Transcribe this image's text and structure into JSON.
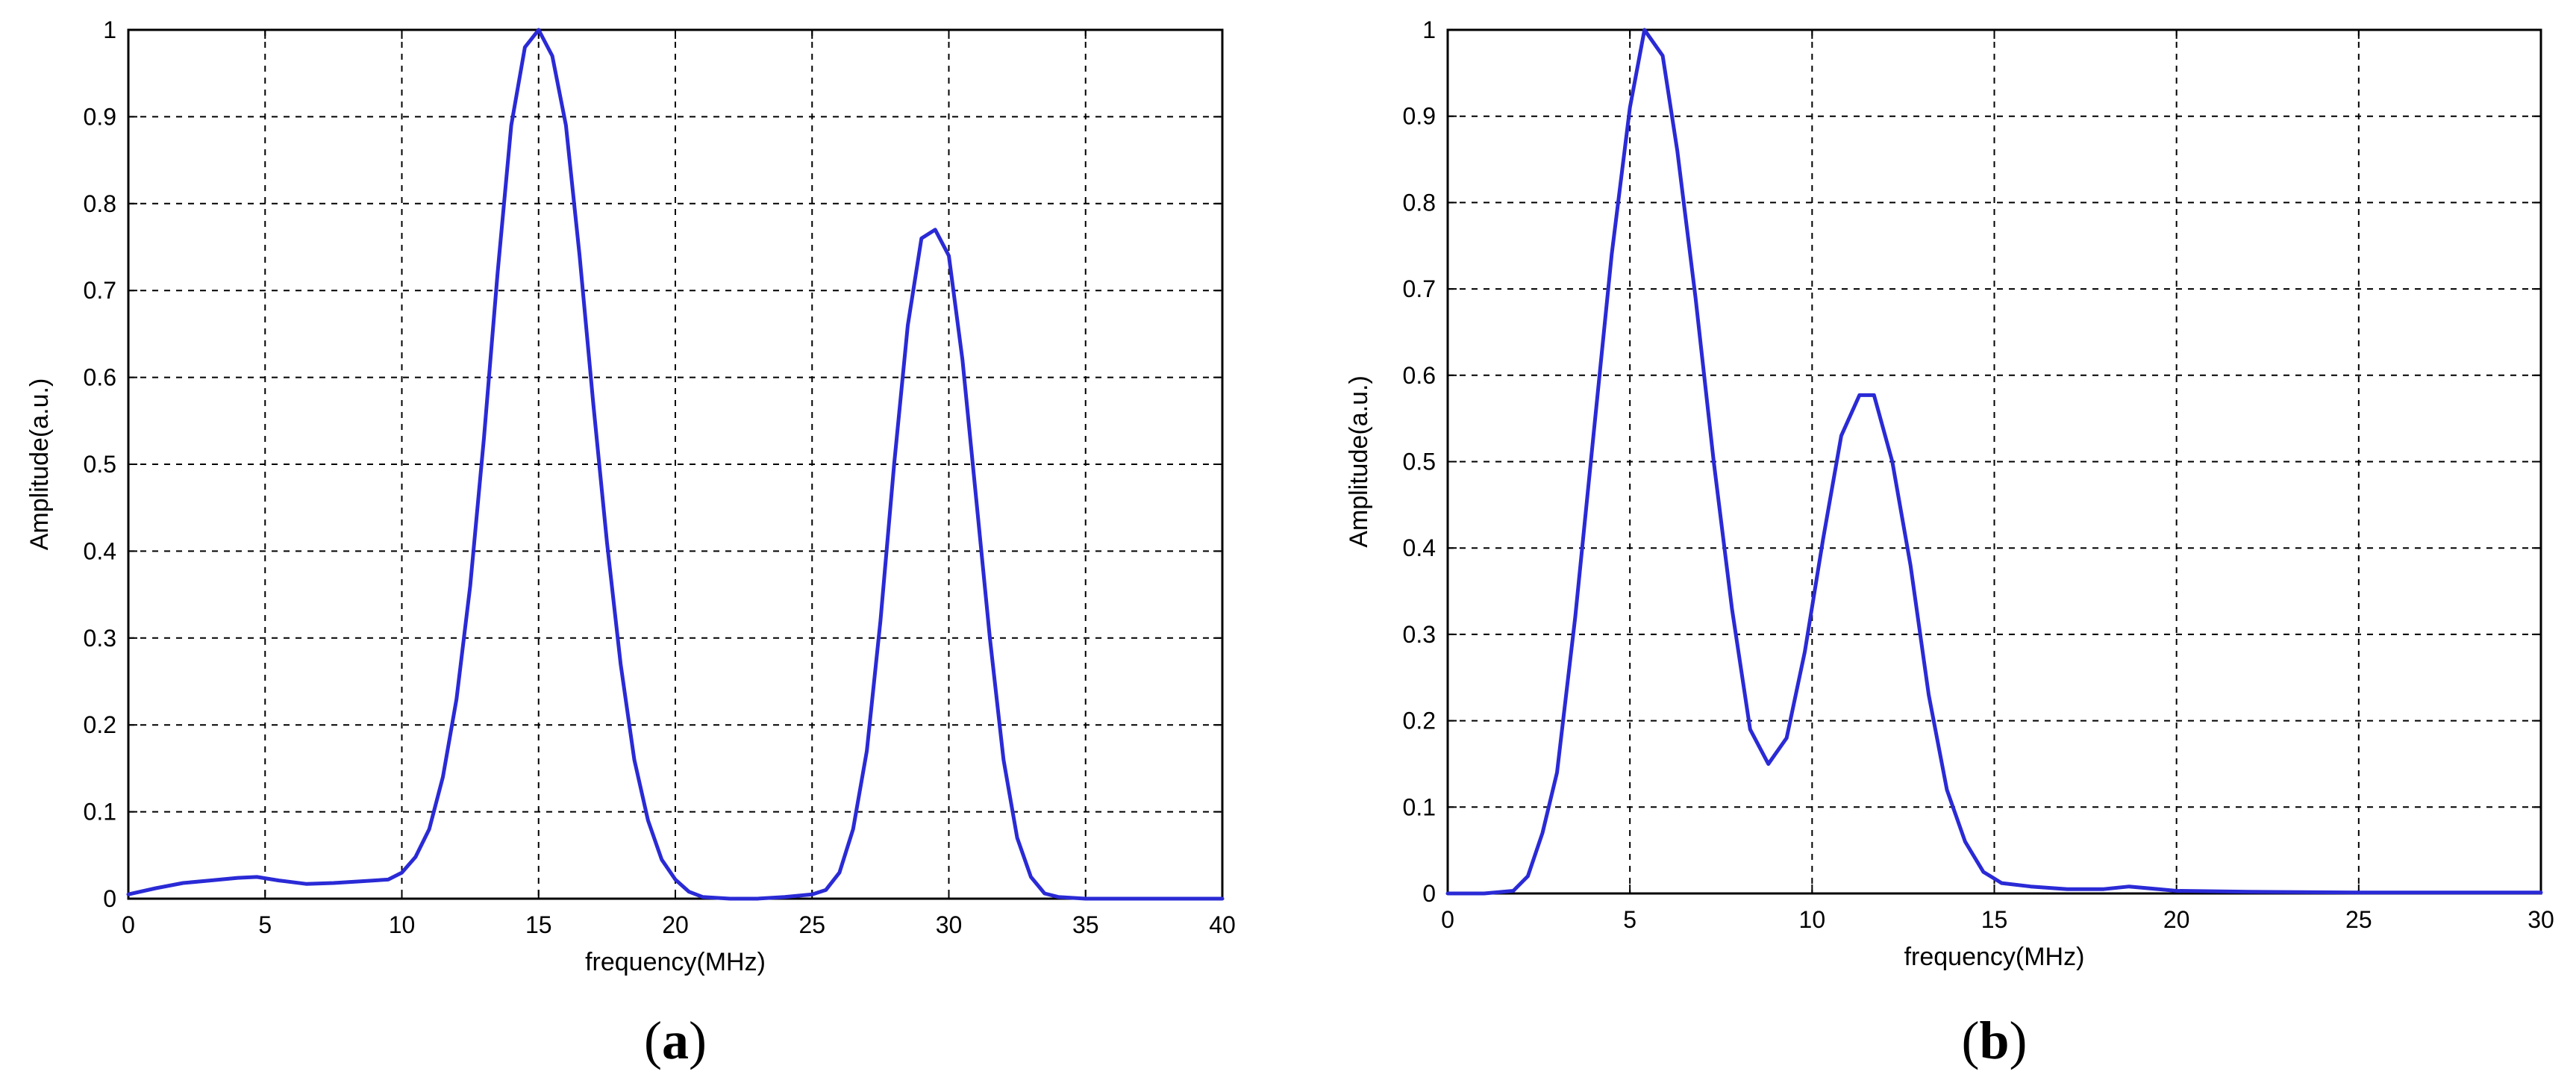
{
  "chart_data": [
    {
      "type": "line",
      "panel_label": "(a)",
      "xlabel": "frequency(MHz)",
      "ylabel": "Amplitude(a.u.)",
      "xlim": [
        0,
        40
      ],
      "ylim": [
        0,
        1
      ],
      "xticks": [
        "0",
        "5",
        "10",
        "15",
        "20",
        "25",
        "30",
        "35",
        "40"
      ],
      "yticks": [
        "0",
        "0.1",
        "0.2",
        "0.3",
        "0.4",
        "0.5",
        "0.6",
        "0.7",
        "0.8",
        "0.9",
        "1"
      ],
      "grid": true,
      "color": "#2a2ad6",
      "series": [
        {
          "x": [
            0,
            1,
            2,
            3,
            4,
            4.7,
            5.5,
            6.5,
            7.5,
            8.5,
            9.5,
            10,
            10.5,
            11,
            11.5,
            12,
            12.5,
            13,
            13.5,
            14,
            14.5,
            15,
            15.5,
            16,
            16.5,
            17,
            17.5,
            18,
            18.5,
            19,
            19.5,
            20,
            20.5,
            21,
            22,
            23,
            24,
            25,
            25.5,
            26,
            26.5,
            27,
            27.5,
            28,
            28.5,
            29,
            29.5,
            30,
            30.5,
            31,
            31.5,
            32,
            32.5,
            33,
            33.5,
            34,
            35,
            36,
            37,
            38,
            39,
            40
          ],
          "y": [
            0.005,
            0.012,
            0.018,
            0.021,
            0.024,
            0.025,
            0.021,
            0.017,
            0.018,
            0.02,
            0.022,
            0.03,
            0.048,
            0.08,
            0.14,
            0.23,
            0.36,
            0.53,
            0.72,
            0.89,
            0.98,
            1.0,
            0.97,
            0.89,
            0.74,
            0.57,
            0.41,
            0.27,
            0.16,
            0.09,
            0.045,
            0.022,
            0.008,
            0.002,
            0.0,
            0.0,
            0.002,
            0.005,
            0.01,
            0.03,
            0.08,
            0.17,
            0.32,
            0.5,
            0.66,
            0.76,
            0.77,
            0.74,
            0.62,
            0.46,
            0.3,
            0.16,
            0.07,
            0.025,
            0.006,
            0.002,
            0.0,
            0.0,
            0.0,
            0.0,
            0.0,
            0.0
          ]
        }
      ]
    },
    {
      "type": "line",
      "panel_label": "(b)",
      "xlabel": "frequency(MHz)",
      "ylabel": "Amplitude(a.u.)",
      "xlim": [
        0,
        30
      ],
      "ylim": [
        0,
        1
      ],
      "xticks": [
        "0",
        "5",
        "10",
        "15",
        "20",
        "25",
        "30"
      ],
      "yticks": [
        "0",
        "0.1",
        "0.2",
        "0.3",
        "0.4",
        "0.5",
        "0.6",
        "0.7",
        "0.8",
        "0.9",
        "1"
      ],
      "grid": true,
      "color": "#2a2ad6",
      "series": [
        {
          "x": [
            0,
            1,
            1.8,
            2.2,
            2.6,
            3,
            3.5,
            4,
            4.5,
            5,
            5.4,
            5.9,
            6.3,
            6.8,
            7.3,
            7.8,
            8.3,
            8.8,
            9.3,
            9.8,
            10.3,
            10.8,
            11.3,
            11.7,
            12.2,
            12.7,
            13.2,
            13.7,
            14.2,
            14.7,
            15.2,
            16,
            17,
            18,
            18.7,
            19.5,
            20,
            22,
            25,
            28,
            30
          ],
          "y": [
            0.0,
            0.0,
            0.003,
            0.02,
            0.07,
            0.14,
            0.32,
            0.53,
            0.74,
            0.91,
            1.0,
            0.97,
            0.86,
            0.69,
            0.5,
            0.33,
            0.19,
            0.15,
            0.18,
            0.28,
            0.41,
            0.53,
            0.577,
            0.577,
            0.5,
            0.38,
            0.23,
            0.12,
            0.06,
            0.025,
            0.012,
            0.008,
            0.005,
            0.005,
            0.008,
            0.005,
            0.003,
            0.002,
            0.001,
            0.001,
            0.001
          ]
        }
      ]
    }
  ]
}
